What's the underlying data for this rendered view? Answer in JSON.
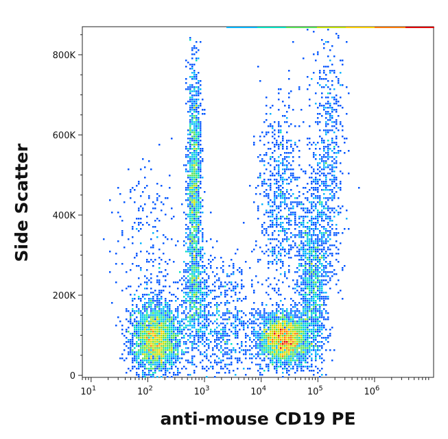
{
  "chart_data": {
    "type": "scatter",
    "title": "",
    "xlabel": "anti-mouse CD19 PE",
    "ylabel": "Side Scatter",
    "x_scale": "log",
    "xlim": [
      7,
      11000000
    ],
    "ylim": [
      -5000,
      870000
    ],
    "x_ticks": [
      {
        "value": 10,
        "base": "10",
        "exp": "1"
      },
      {
        "value": 100,
        "base": "10",
        "exp": "2"
      },
      {
        "value": 1000,
        "base": "10",
        "exp": "3"
      },
      {
        "value": 10000,
        "base": "10",
        "exp": "4"
      },
      {
        "value": 100000,
        "base": "10",
        "exp": "5"
      },
      {
        "value": 1000000,
        "base": "10",
        "exp": "6"
      }
    ],
    "y_ticks": [
      {
        "value": 0,
        "label": "0"
      },
      {
        "value": 200000,
        "label": "200K"
      },
      {
        "value": 400000,
        "label": "400K"
      },
      {
        "value": 600000,
        "label": "600K"
      },
      {
        "value": 800000,
        "label": "800K"
      }
    ],
    "grid": false,
    "legend": "none",
    "density_colors": [
      "#0000cc",
      "#0055ff",
      "#00b4ff",
      "#00e0c0",
      "#55e055",
      "#c0e000",
      "#ffd000",
      "#ff7a00",
      "#e00000"
    ],
    "populations": [
      {
        "x": 140,
        "y": 90000,
        "sx": 0.22,
        "sy": 45000,
        "n": 2400
      },
      {
        "x": 660,
        "y": 480000,
        "sx": 0.06,
        "sy": 150000,
        "n": 1300
      },
      {
        "x": 700,
        "y": 200000,
        "sx": 0.12,
        "sy": 70000,
        "n": 500
      },
      {
        "x": 22000,
        "y": 440000,
        "sx": 0.2,
        "sy": 120000,
        "n": 700
      },
      {
        "x": 25000,
        "y": 90000,
        "sx": 0.22,
        "sy": 32000,
        "n": 2600
      },
      {
        "x": 80000,
        "y": 230000,
        "sx": 0.13,
        "sy": 110000,
        "n": 1100
      },
      {
        "x": 150000,
        "y": 520000,
        "sx": 0.15,
        "sy": 180000,
        "n": 650
      },
      {
        "x": 2000,
        "y": 120000,
        "sx": 0.35,
        "sy": 80000,
        "n": 700
      },
      {
        "x": 100,
        "y": 300000,
        "sx": 0.3,
        "sy": 120000,
        "n": 250
      }
    ]
  }
}
